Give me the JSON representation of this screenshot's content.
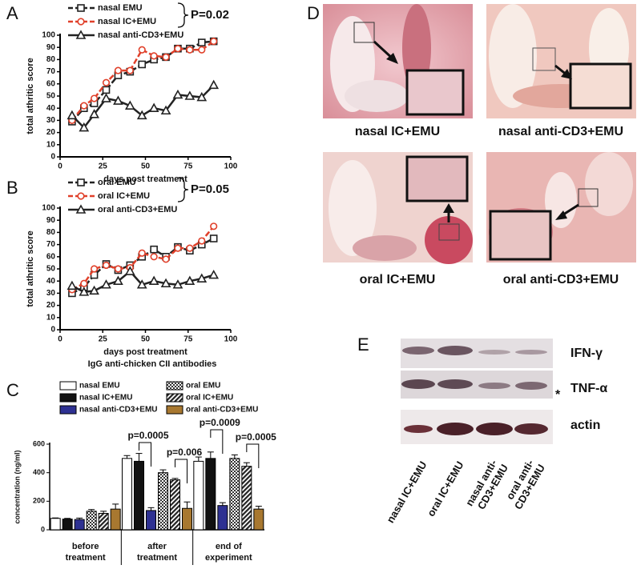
{
  "chart_data": [
    {
      "type": "line",
      "panel": "A",
      "ylabel": "total athritic score",
      "xlabel": "days post treatment",
      "x": [
        7,
        14,
        20,
        27,
        34,
        41,
        48,
        55,
        62,
        69,
        76,
        83,
        90
      ],
      "xlim": [
        0,
        100
      ],
      "xticks": [
        0,
        25,
        50,
        75,
        100
      ],
      "ylim": [
        0,
        100
      ],
      "yticks": [
        0,
        10,
        20,
        30,
        40,
        50,
        60,
        70,
        80,
        90,
        100
      ],
      "annotation": "P=0.02",
      "series": [
        {
          "name": "nasal EMU",
          "color": "#222222",
          "marker": "square",
          "dash": true,
          "values": [
            29,
            40,
            44,
            55,
            67,
            70,
            76,
            80,
            82,
            89,
            89,
            94,
            95
          ]
        },
        {
          "name": "nasal IC+EMU",
          "color": "#e0402a",
          "marker": "circle",
          "dash": true,
          "values": [
            30,
            42,
            48,
            61,
            71,
            71,
            88,
            83,
            82,
            89,
            88,
            88,
            95
          ]
        },
        {
          "name": "nasal anti-CD3+EMU",
          "color": "#222222",
          "marker": "triangle",
          "dash": false,
          "values": [
            34,
            24,
            35,
            48,
            46,
            42,
            34,
            40,
            38,
            51,
            50,
            49,
            59
          ]
        }
      ]
    },
    {
      "type": "line",
      "panel": "B",
      "ylabel": "total athritic score",
      "xlabel": "days post treatment",
      "x": [
        7,
        14,
        20,
        27,
        34,
        41,
        48,
        55,
        62,
        69,
        76,
        83,
        90
      ],
      "xlim": [
        0,
        100
      ],
      "xticks": [
        0,
        25,
        50,
        75,
        100
      ],
      "ylim": [
        0,
        100
      ],
      "yticks": [
        0,
        10,
        20,
        30,
        40,
        50,
        60,
        70,
        80,
        90,
        100
      ],
      "annotation": "P=0.05",
      "series": [
        {
          "name": "oral EMU",
          "color": "#222222",
          "marker": "square",
          "dash": true,
          "values": [
            30,
            35,
            45,
            54,
            49,
            53,
            60,
            66,
            60,
            68,
            65,
            70,
            75
          ]
        },
        {
          "name": "oral IC+EMU",
          "color": "#e0402a",
          "marker": "circle",
          "dash": true,
          "values": [
            33,
            38,
            50,
            53,
            50,
            51,
            63,
            60,
            58,
            67,
            67,
            73,
            85
          ]
        },
        {
          "name": "oral anti-CD3+EMU",
          "color": "#222222",
          "marker": "triangle",
          "dash": false,
          "values": [
            36,
            31,
            32,
            37,
            40,
            48,
            37,
            40,
            38,
            37,
            40,
            42,
            45
          ]
        }
      ]
    },
    {
      "type": "bar",
      "panel": "C",
      "title": "IgG anti-chicken CII antibodies",
      "ylabel": "concentration (ng/ml)",
      "categories": [
        [
          "before",
          "treatment"
        ],
        [
          "after",
          "treatment"
        ],
        [
          "end of",
          "experiment"
        ]
      ],
      "ylim": [
        0,
        600
      ],
      "yticks": [
        0,
        200,
        400,
        600
      ],
      "annotations": [
        "p=0.0005",
        "p=0.006",
        "p=0.0009",
        "p=0.0005"
      ],
      "series": [
        {
          "name": "nasal EMU",
          "color": "#ffffff",
          "values": [
            80,
            500,
            480
          ],
          "errors": [
            3,
            20,
            30
          ]
        },
        {
          "name": "nasal IC+EMU",
          "color": "#111111",
          "values": [
            75,
            480,
            500
          ],
          "errors": [
            5,
            55,
            45
          ]
        },
        {
          "name": "nasal anti-CD3+EMU",
          "color": "#2e3192",
          "values": [
            72,
            135,
            170
          ],
          "errors": [
            10,
            20,
            20
          ]
        },
        {
          "name": "oral EMU",
          "color": "#555555",
          "pattern": "checker",
          "values": [
            130,
            400,
            500
          ],
          "errors": [
            12,
            20,
            25
          ]
        },
        {
          "name": "oral IC+EMU",
          "color": "#222222",
          "pattern": "hatch",
          "values": [
            115,
            350,
            445
          ],
          "errors": [
            15,
            10,
            25
          ]
        },
        {
          "name": "oral anti-CD3+EMU",
          "color": "#a87830",
          "values": [
            145,
            150,
            145
          ],
          "errors": [
            35,
            45,
            20
          ]
        }
      ]
    }
  ],
  "histology": {
    "panel": "D",
    "captions": [
      "nasal IC+EMU",
      "nasal anti-CD3+EMU",
      "oral IC+EMU",
      "oral anti-CD3+EMU"
    ]
  },
  "blot": {
    "panel": "E",
    "bands": [
      "IFN-γ",
      "TNF-α",
      "actin"
    ],
    "marker": "*",
    "lanes": [
      [
        "nasal IC+EMU"
      ],
      [
        "oral IC+EMU"
      ],
      [
        "nasal anti-",
        "CD3+EMU"
      ],
      [
        "oral anti-",
        "CD3+EMU"
      ]
    ]
  }
}
